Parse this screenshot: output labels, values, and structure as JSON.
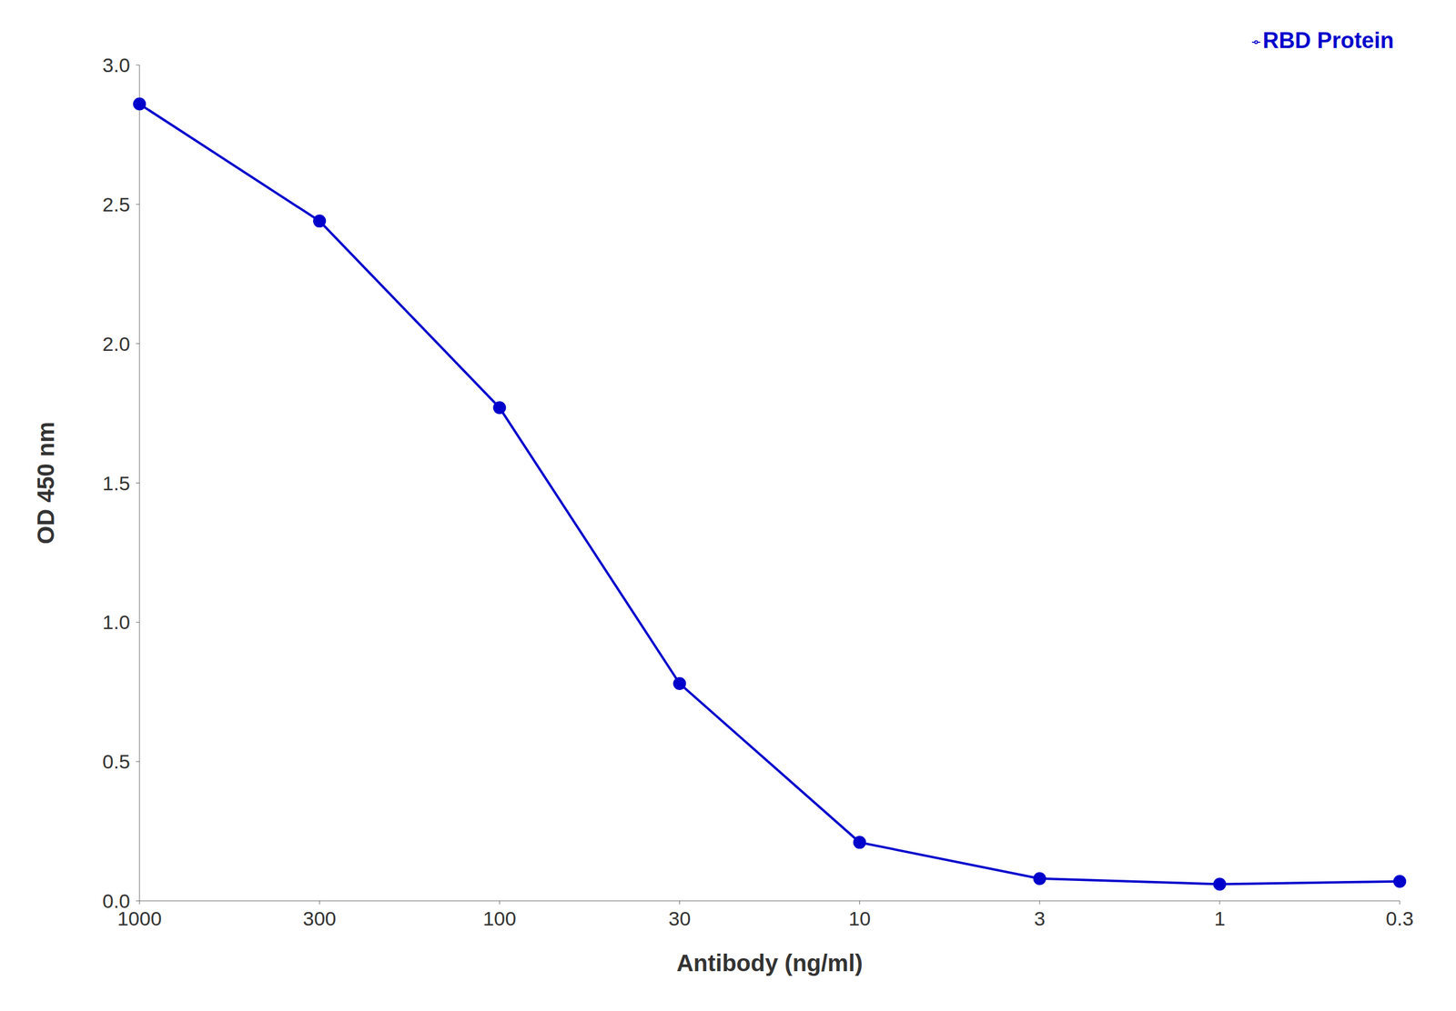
{
  "chart_data": {
    "type": "line",
    "xlabel": "Antibody (ng/ml)",
    "ylabel": "OD 450 nm",
    "categories": [
      "1000",
      "300",
      "100",
      "30",
      "10",
      "3",
      "1",
      "0.3"
    ],
    "series": [
      {
        "name": "RBD Protein",
        "color": "#0000CC",
        "marker": "circle",
        "values": [
          2.86,
          2.44,
          1.77,
          0.78,
          0.21,
          0.08,
          0.06,
          0.07
        ]
      }
    ],
    "ylim": [
      0,
      3.0
    ],
    "yticks": [
      {
        "value": 0,
        "label": "0.0"
      },
      0.5,
      {
        "value": 1,
        "label": "1.0"
      },
      1.5,
      {
        "value": 2,
        "label": "2.0"
      },
      2.5,
      {
        "value": 3,
        "label": "3.0"
      }
    ],
    "grid": false,
    "legend": "upper right"
  }
}
